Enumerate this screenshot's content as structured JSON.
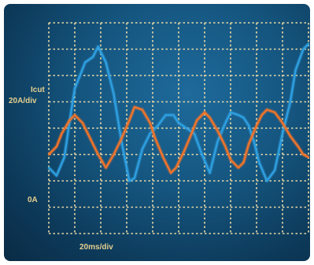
{
  "labels": {
    "trace_name": "Icut",
    "vertical_scale": "20A/div",
    "zero_marker": "0A",
    "horizontal_scale": "20ms/div"
  },
  "colors": {
    "background": "#155680",
    "grid": "#e9d9a6",
    "series_blue": "#2e9fe0",
    "series_orange": "#f0742a",
    "text": "#e4cf8e"
  },
  "chart_data": {
    "type": "line",
    "grid": true,
    "x_divisions": 10,
    "y_divisions": 8,
    "x_unit_per_div": "20ms",
    "y_unit_per_div": "20A",
    "xlim": [
      0,
      200
    ],
    "ylim": [
      -40,
      120
    ],
    "y_zero_marker_amps": 0,
    "series": [
      {
        "color": "#2e9fe0",
        "x": [
          0,
          6,
          12,
          16,
          20,
          28,
          34,
          38,
          44,
          50,
          56,
          62,
          66,
          72,
          78,
          84,
          90,
          96,
          100,
          106,
          112,
          118,
          124,
          130,
          136,
          140,
          146,
          150,
          154,
          158,
          162,
          168,
          174,
          180,
          186,
          190,
          196,
          200
        ],
        "y": [
          10,
          4,
          18,
          45,
          70,
          90,
          94,
          102,
          90,
          66,
          30,
          0,
          2,
          24,
          36,
          42,
          50,
          50,
          44,
          40,
          36,
          20,
          6,
          30,
          44,
          52,
          50,
          48,
          42,
          30,
          14,
          0,
          8,
          36,
          60,
          84,
          100,
          104
        ]
      },
      {
        "color": "#f0742a",
        "x": [
          0,
          6,
          10,
          16,
          20,
          26,
          32,
          38,
          44,
          50,
          56,
          62,
          66,
          72,
          78,
          82,
          88,
          94,
          98,
          104,
          110,
          114,
          120,
          124,
          130,
          136,
          140,
          146,
          150,
          154,
          160,
          164,
          168,
          174,
          180,
          186,
          192,
          196,
          200
        ],
        "y": [
          20,
          26,
          36,
          46,
          50,
          44,
          32,
          20,
          10,
          20,
          32,
          46,
          56,
          54,
          44,
          32,
          18,
          6,
          10,
          22,
          36,
          46,
          52,
          48,
          38,
          26,
          16,
          10,
          14,
          28,
          42,
          50,
          54,
          52,
          44,
          34,
          26,
          20,
          18
        ]
      }
    ]
  }
}
